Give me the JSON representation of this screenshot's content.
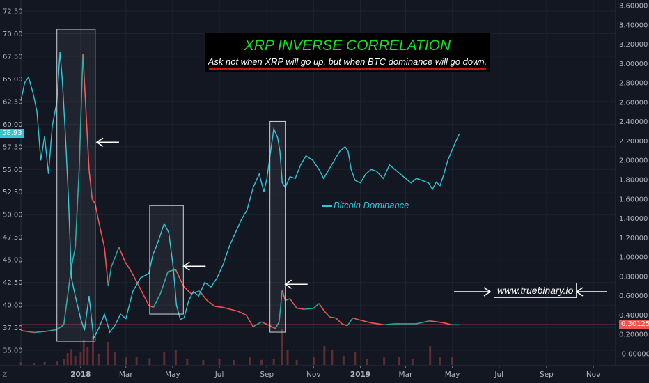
{
  "chart_data": {
    "type": "line",
    "title": "XRP INVERSE CORRELATION",
    "subtitle": "Ask not when XRP will go up, but when BTC dominance will go down.",
    "x_ticks": [
      "2018",
      "Mar",
      "May",
      "Jul",
      "Sep",
      "Nov",
      "2019",
      "Mar",
      "May",
      "Jul",
      "Sep",
      "Nov"
    ],
    "x_range": [
      "2017-10-15",
      "2019-11-30"
    ],
    "left_axis": {
      "ticks": [
        "72.50",
        "70.00",
        "67.50",
        "65.00",
        "62.50",
        "60.00",
        "57.50",
        "55.00",
        "52.50",
        "50.00",
        "47.50",
        "45.00",
        "42.50",
        "40.00",
        "37.50",
        "35.00"
      ],
      "ylim": [
        33.8,
        73.3
      ],
      "current_value": "58.93"
    },
    "right_axis": {
      "ticks": [
        "3.60000",
        "3.40000",
        "3.20000",
        "3.00000",
        "2.80000",
        "2.60000",
        "2.40000",
        "2.20000",
        "2.00000",
        "1.80000",
        "1.60000",
        "1.40000",
        "1.20000",
        "1.00000",
        "0.80000",
        "0.60000",
        "0.40000",
        "0.20000",
        "-0.00000"
      ],
      "ylim": [
        -0.09,
        3.66
      ],
      "current_value": "0.30125"
    },
    "series": [
      {
        "name": "Bitcoin Dominance",
        "axis": "left",
        "color": "#2fc6d6",
        "points": [
          [
            "2017-10-15",
            62.6
          ],
          [
            "2017-10-20",
            64.6
          ],
          [
            "2017-10-25",
            65.2
          ],
          [
            "2017-10-31",
            63.4
          ],
          [
            "2017-11-05",
            61.4
          ],
          [
            "2017-11-10",
            56.0
          ],
          [
            "2017-11-15",
            58.7
          ],
          [
            "2017-11-20",
            54.5
          ],
          [
            "2017-11-25",
            59.8
          ],
          [
            "2017-12-01",
            62.5
          ],
          [
            "2017-12-05",
            68.0
          ],
          [
            "2017-12-08",
            65.0
          ],
          [
            "2017-12-12",
            59.0
          ],
          [
            "2017-12-16",
            52.0
          ],
          [
            "2017-12-20",
            43.0
          ],
          [
            "2017-12-25",
            41.0
          ],
          [
            "2018-01-01",
            38.5
          ],
          [
            "2018-01-06",
            37.2
          ],
          [
            "2018-01-12",
            41.0
          ],
          [
            "2018-01-18",
            36.3
          ],
          [
            "2018-01-25",
            37.5
          ],
          [
            "2018-02-01",
            39.0
          ],
          [
            "2018-02-08",
            37.0
          ],
          [
            "2018-02-15",
            37.8
          ],
          [
            "2018-02-22",
            39.0
          ],
          [
            "2018-03-01",
            38.5
          ],
          [
            "2018-03-10",
            41.5
          ],
          [
            "2018-03-20",
            43.0
          ],
          [
            "2018-03-31",
            43.5
          ],
          [
            "2018-04-05",
            45.5
          ],
          [
            "2018-04-12",
            47.0
          ],
          [
            "2018-04-20",
            49.0
          ],
          [
            "2018-04-26",
            48.0
          ],
          [
            "2018-05-02",
            44.0
          ],
          [
            "2018-05-06",
            40.0
          ],
          [
            "2018-05-11",
            38.4
          ],
          [
            "2018-05-16",
            38.6
          ],
          [
            "2018-05-22",
            40.5
          ],
          [
            "2018-05-28",
            41.5
          ],
          [
            "2018-06-04",
            41.0
          ],
          [
            "2018-06-12",
            42.5
          ],
          [
            "2018-06-20",
            42.0
          ],
          [
            "2018-06-28",
            43.0
          ],
          [
            "2018-07-06",
            44.5
          ],
          [
            "2018-07-14",
            46.5
          ],
          [
            "2018-07-22",
            48.0
          ],
          [
            "2018-07-30",
            49.5
          ],
          [
            "2018-08-06",
            50.5
          ],
          [
            "2018-08-14",
            53.0
          ],
          [
            "2018-08-22",
            54.5
          ],
          [
            "2018-08-28",
            52.5
          ],
          [
            "2018-09-01",
            54.0
          ],
          [
            "2018-09-05",
            56.5
          ],
          [
            "2018-09-10",
            59.5
          ],
          [
            "2018-09-15",
            58.5
          ],
          [
            "2018-09-18",
            57.0
          ],
          [
            "2018-09-21",
            53.5
          ],
          [
            "2018-09-25",
            53.0
          ],
          [
            "2018-10-01",
            54.2
          ],
          [
            "2018-10-08",
            54.0
          ],
          [
            "2018-10-15",
            55.5
          ],
          [
            "2018-10-22",
            56.5
          ],
          [
            "2018-10-31",
            56.0
          ],
          [
            "2018-11-08",
            55.0
          ],
          [
            "2018-11-14",
            54.0
          ],
          [
            "2018-11-21",
            55.0
          ],
          [
            "2018-11-28",
            56.0
          ],
          [
            "2018-12-05",
            57.0
          ],
          [
            "2018-12-12",
            57.5
          ],
          [
            "2018-12-16",
            57.0
          ],
          [
            "2018-12-20",
            55.0
          ],
          [
            "2018-12-25",
            53.8
          ],
          [
            "2019-01-01",
            53.5
          ],
          [
            "2019-01-08",
            54.5
          ],
          [
            "2019-01-15",
            55.0
          ],
          [
            "2019-01-22",
            54.8
          ],
          [
            "2019-01-31",
            54.0
          ],
          [
            "2019-02-08",
            55.5
          ],
          [
            "2019-02-15",
            55.0
          ],
          [
            "2019-02-22",
            54.5
          ],
          [
            "2019-03-01",
            54.0
          ],
          [
            "2019-03-08",
            53.5
          ],
          [
            "2019-03-15",
            54.0
          ],
          [
            "2019-03-22",
            53.8
          ],
          [
            "2019-03-31",
            53.5
          ],
          [
            "2019-04-05",
            52.8
          ],
          [
            "2019-04-10",
            53.6
          ],
          [
            "2019-04-15",
            53.2
          ],
          [
            "2019-04-20",
            54.5
          ],
          [
            "2019-04-25",
            56.0
          ],
          [
            "2019-04-30",
            57.0
          ],
          [
            "2019-05-05",
            58.0
          ],
          [
            "2019-05-10",
            58.9
          ]
        ]
      },
      {
        "name": "XRP",
        "axis": "right",
        "color": "#ef5350",
        "points": [
          [
            "2017-10-15",
            0.24
          ],
          [
            "2017-11-01",
            0.22
          ],
          [
            "2017-11-15",
            0.23
          ],
          [
            "2017-12-01",
            0.25
          ],
          [
            "2017-12-10",
            0.3
          ],
          [
            "2017-12-15",
            0.6
          ],
          [
            "2017-12-20",
            0.9
          ],
          [
            "2017-12-25",
            1.1
          ],
          [
            "2017-12-30",
            1.9
          ],
          [
            "2018-01-04",
            3.1
          ],
          [
            "2018-01-08",
            2.5
          ],
          [
            "2018-01-12",
            1.9
          ],
          [
            "2018-01-16",
            1.6
          ],
          [
            "2018-01-20",
            1.55
          ],
          [
            "2018-01-25",
            1.35
          ],
          [
            "2018-02-01",
            1.1
          ],
          [
            "2018-02-06",
            0.7
          ],
          [
            "2018-02-10",
            0.9
          ],
          [
            "2018-02-20",
            1.1
          ],
          [
            "2018-02-28",
            0.95
          ],
          [
            "2018-03-08",
            0.85
          ],
          [
            "2018-03-18",
            0.7
          ],
          [
            "2018-03-31",
            0.5
          ],
          [
            "2018-04-06",
            0.48
          ],
          [
            "2018-04-15",
            0.62
          ],
          [
            "2018-04-25",
            0.85
          ],
          [
            "2018-05-05",
            0.87
          ],
          [
            "2018-05-15",
            0.7
          ],
          [
            "2018-05-25",
            0.62
          ],
          [
            "2018-06-05",
            0.65
          ],
          [
            "2018-06-15",
            0.55
          ],
          [
            "2018-06-25",
            0.49
          ],
          [
            "2018-07-05",
            0.48
          ],
          [
            "2018-07-15",
            0.46
          ],
          [
            "2018-07-25",
            0.44
          ],
          [
            "2018-08-05",
            0.4
          ],
          [
            "2018-08-14",
            0.28
          ],
          [
            "2018-08-25",
            0.33
          ],
          [
            "2018-09-05",
            0.29
          ],
          [
            "2018-09-12",
            0.26
          ],
          [
            "2018-09-17",
            0.33
          ],
          [
            "2018-09-21",
            0.66
          ],
          [
            "2018-09-25",
            0.55
          ],
          [
            "2018-10-01",
            0.57
          ],
          [
            "2018-10-10",
            0.47
          ],
          [
            "2018-10-20",
            0.46
          ],
          [
            "2018-11-01",
            0.47
          ],
          [
            "2018-11-08",
            0.52
          ],
          [
            "2018-11-15",
            0.44
          ],
          [
            "2018-11-22",
            0.38
          ],
          [
            "2018-11-30",
            0.37
          ],
          [
            "2018-12-08",
            0.31
          ],
          [
            "2018-12-15",
            0.29
          ],
          [
            "2018-12-22",
            0.37
          ],
          [
            "2018-12-31",
            0.35
          ],
          [
            "2019-01-15",
            0.32
          ],
          [
            "2019-02-01",
            0.3
          ],
          [
            "2019-02-15",
            0.31
          ],
          [
            "2019-03-01",
            0.31
          ],
          [
            "2019-03-15",
            0.31
          ],
          [
            "2019-04-01",
            0.34
          ],
          [
            "2019-04-12",
            0.33
          ],
          [
            "2019-04-20",
            0.32
          ],
          [
            "2019-04-30",
            0.3
          ],
          [
            "2019-05-10",
            0.3
          ]
        ]
      }
    ],
    "annotations": {
      "boxes": [
        {
          "x0": "2017-12-01",
          "x1": "2018-01-20",
          "y0": 36.0,
          "y1": 70.5
        },
        {
          "x0": "2018-04-01",
          "x1": "2018-05-15",
          "y0": 39.0,
          "y1": 51.0
        },
        {
          "x0": "2018-09-05",
          "x1": "2018-09-25",
          "y0": 37.0,
          "y1": 60.3
        }
      ],
      "arrows": [
        {
          "x": "2018-01-22",
          "y": 58.0
        },
        {
          "x": "2018-05-15",
          "y": 44.3
        },
        {
          "x": "2018-09-25",
          "y": 42.3
        }
      ],
      "current_line_value": 0.30125
    },
    "volume": [
      [
        "2017-10-15",
        0.06
      ],
      [
        "2017-11-01",
        0.05
      ],
      [
        "2017-11-15",
        0.07
      ],
      [
        "2017-12-01",
        0.08
      ],
      [
        "2017-12-10",
        0.14
      ],
      [
        "2017-12-15",
        0.28
      ],
      [
        "2017-12-20",
        0.38
      ],
      [
        "2017-12-25",
        0.22
      ],
      [
        "2018-01-01",
        0.3
      ],
      [
        "2018-01-05",
        0.6
      ],
      [
        "2018-01-10",
        0.42
      ],
      [
        "2018-01-17",
        0.7
      ],
      [
        "2018-01-25",
        0.25
      ],
      [
        "2018-02-06",
        0.55
      ],
      [
        "2018-02-15",
        0.3
      ],
      [
        "2018-03-01",
        0.18
      ],
      [
        "2018-03-15",
        0.2
      ],
      [
        "2018-04-01",
        0.16
      ],
      [
        "2018-04-20",
        0.3
      ],
      [
        "2018-05-05",
        0.35
      ],
      [
        "2018-05-20",
        0.15
      ],
      [
        "2018-06-10",
        0.12
      ],
      [
        "2018-07-01",
        0.14
      ],
      [
        "2018-07-20",
        0.12
      ],
      [
        "2018-08-10",
        0.18
      ],
      [
        "2018-08-25",
        0.12
      ],
      [
        "2018-09-10",
        0.14
      ],
      [
        "2018-09-21",
        0.85
      ],
      [
        "2018-09-28",
        0.35
      ],
      [
        "2018-10-10",
        0.12
      ],
      [
        "2018-11-01",
        0.18
      ],
      [
        "2018-11-15",
        0.45
      ],
      [
        "2018-11-25",
        0.35
      ],
      [
        "2018-12-10",
        0.22
      ],
      [
        "2018-12-25",
        0.3
      ],
      [
        "2019-01-10",
        0.15
      ],
      [
        "2019-02-01",
        0.18
      ],
      [
        "2019-02-20",
        0.2
      ],
      [
        "2019-03-10",
        0.14
      ],
      [
        "2019-04-02",
        0.45
      ],
      [
        "2019-04-15",
        0.2
      ],
      [
        "2019-05-01",
        0.18
      ]
    ]
  },
  "labels": {
    "title": "XRP INVERSE CORRELATION",
    "subtitle": "Ask not when XRP will go up, but when BTC dominance will go down.",
    "legend": "Bitcoin Dominance",
    "website": "www.truebinary.io",
    "left_current": "58.93",
    "right_current": "0.30125",
    "corner_z": "Z"
  },
  "colors": {
    "background": "#131722",
    "btc_dominance": "#2fc6d6",
    "xrp_up": "#26a69a",
    "xrp_down": "#ef5350",
    "title_green": "#11e21e",
    "underline_red": "#d01010"
  }
}
